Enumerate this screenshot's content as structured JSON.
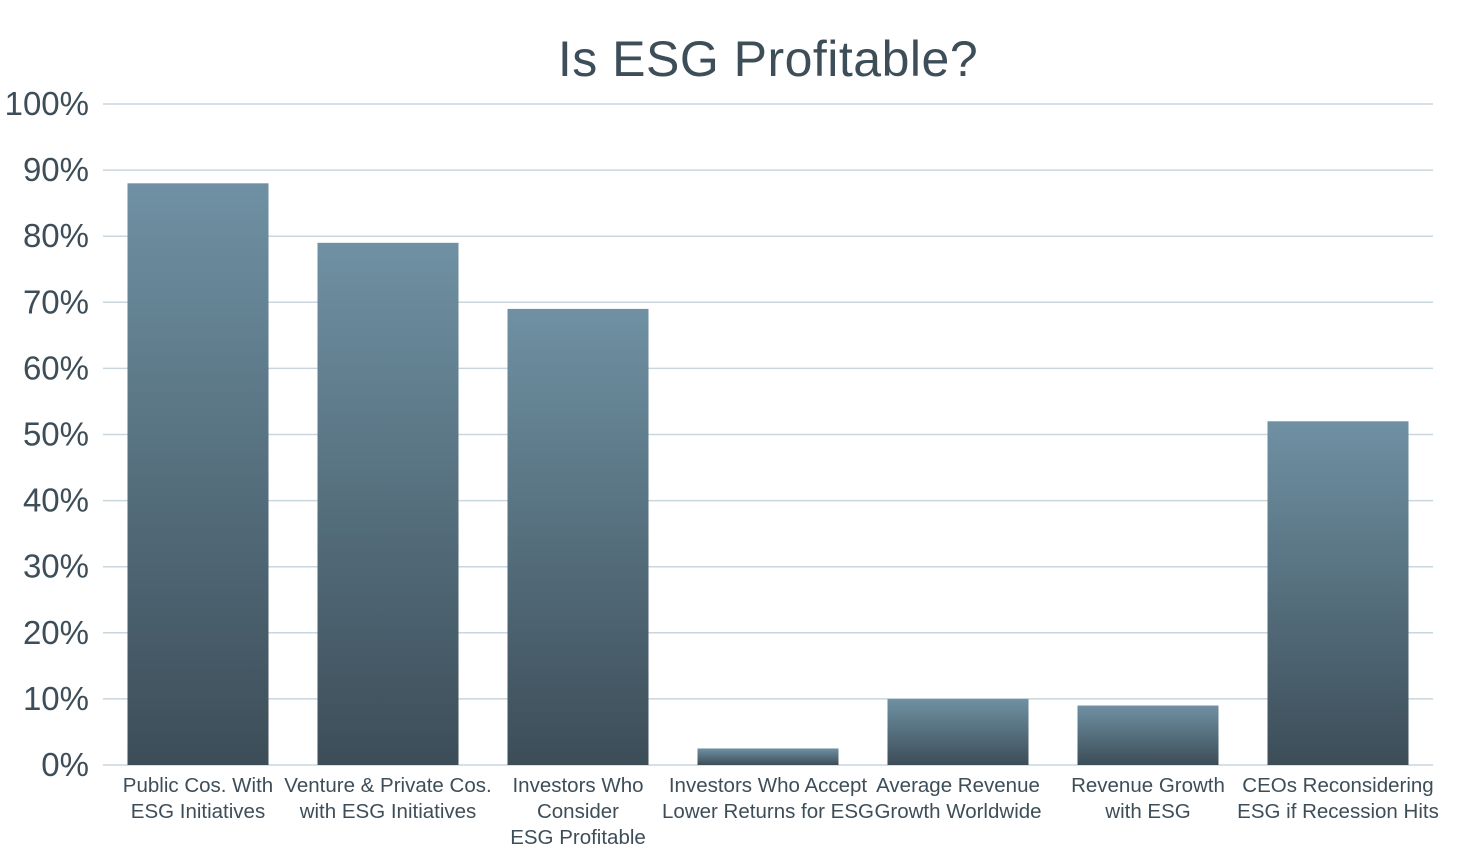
{
  "chart_data": {
    "type": "bar",
    "title": "Is ESG Profitable?",
    "xlabel": "",
    "ylabel": "",
    "ylim": [
      0,
      100
    ],
    "yticks": [
      "0%",
      "10%",
      "20%",
      "30%",
      "40%",
      "50%",
      "60%",
      "70%",
      "80%",
      "90%",
      "100%"
    ],
    "grid": true,
    "categories": [
      [
        "Public Cos. With",
        "ESG Initiatives"
      ],
      [
        "Venture & Private Cos.",
        "with ESG Initiatives"
      ],
      [
        "Investors Who",
        "Consider",
        "ESG Profitable"
      ],
      [
        "Investors Who Accept",
        "Lower Returns for ESG"
      ],
      [
        "Average Revenue",
        "Growth Worldwide"
      ],
      [
        "Revenue Growth",
        "with ESG"
      ],
      [
        "CEOs Reconsidering",
        "ESG if Recession Hits"
      ]
    ],
    "values": [
      88,
      79,
      69,
      2.5,
      10,
      9,
      52
    ],
    "colors": {
      "bar_top": "#6f91a3",
      "bar_bottom": "#3c4d58",
      "text": "#3e4e59",
      "grid": "#c9d6dd"
    }
  }
}
